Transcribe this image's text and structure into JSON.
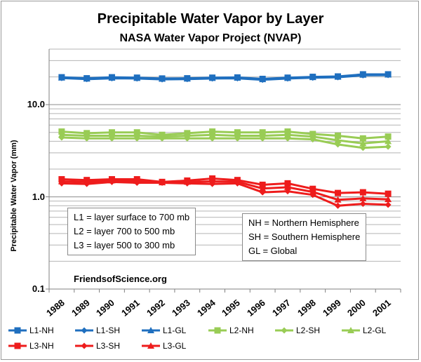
{
  "chart_data": {
    "type": "line",
    "title": "Precipitable Water Vapor  by Layer",
    "subtitle": "NASA Water Vapor Project (NVAP)",
    "xlabel": "",
    "ylabel": "Precipitable Water Vapor (mm)",
    "yscale": "log",
    "ylim": [
      0.1,
      40
    ],
    "y_ticks": [
      "0.1",
      "1.0",
      "10.0"
    ],
    "x": [
      "1988",
      "1989",
      "1990",
      "1991",
      "1992",
      "1993",
      "1994",
      "1995",
      "1996",
      "1997",
      "1998",
      "1999",
      "2000",
      "2001"
    ],
    "series": [
      {
        "name": "L1-NH",
        "color": "#1f6fbf",
        "marker": "square",
        "values": [
          19.8,
          19.3,
          19.8,
          19.6,
          19.2,
          19.3,
          19.6,
          19.7,
          19.0,
          19.6,
          20.0,
          20.2,
          21.3,
          21.3
        ]
      },
      {
        "name": "L1-SH",
        "color": "#1f6fbf",
        "marker": "diamond",
        "values": [
          19.4,
          18.9,
          19.3,
          19.2,
          18.8,
          18.9,
          19.2,
          19.3,
          18.6,
          19.2,
          19.6,
          19.8,
          20.8,
          20.9
        ]
      },
      {
        "name": "L1-GL",
        "color": "#1f6fbf",
        "marker": "triangle",
        "values": [
          19.6,
          19.1,
          19.5,
          19.4,
          19.0,
          19.1,
          19.4,
          19.5,
          18.8,
          19.4,
          19.8,
          20.0,
          21.0,
          21.1
        ]
      },
      {
        "name": "L2-NH",
        "color": "#99cc55",
        "marker": "square",
        "values": [
          5.1,
          4.9,
          5.0,
          5.0,
          4.7,
          4.9,
          5.1,
          5.0,
          5.0,
          5.1,
          4.8,
          4.6,
          4.3,
          4.5
        ]
      },
      {
        "name": "L2-SH",
        "color": "#99cc55",
        "marker": "diamond",
        "values": [
          4.4,
          4.3,
          4.3,
          4.3,
          4.3,
          4.3,
          4.3,
          4.3,
          4.3,
          4.3,
          4.2,
          3.7,
          3.4,
          3.5
        ]
      },
      {
        "name": "L2-GL",
        "color": "#99cc55",
        "marker": "triangle",
        "values": [
          4.7,
          4.6,
          4.6,
          4.6,
          4.5,
          4.6,
          4.7,
          4.6,
          4.6,
          4.7,
          4.5,
          4.1,
          3.8,
          4.0
        ]
      },
      {
        "name": "L3-NH",
        "color": "#ee1c1c",
        "marker": "square",
        "values": [
          1.55,
          1.52,
          1.55,
          1.55,
          1.45,
          1.5,
          1.58,
          1.52,
          1.35,
          1.4,
          1.22,
          1.1,
          1.12,
          1.08
        ]
      },
      {
        "name": "L3-SH",
        "color": "#ee1c1c",
        "marker": "diamond",
        "values": [
          1.4,
          1.38,
          1.45,
          1.42,
          1.42,
          1.4,
          1.38,
          1.4,
          1.12,
          1.15,
          1.05,
          0.8,
          0.84,
          0.82
        ]
      },
      {
        "name": "L3-GL",
        "color": "#ee1c1c",
        "marker": "triangle",
        "values": [
          1.47,
          1.45,
          1.5,
          1.48,
          1.43,
          1.45,
          1.47,
          1.46,
          1.23,
          1.27,
          1.13,
          0.93,
          0.96,
          0.94
        ]
      }
    ],
    "annotations": {
      "layers": [
        "L1 = layer surface to 700  mb",
        "L2 = layer 700  to 500 mb",
        "L3 = layer 500  to 300 mb"
      ],
      "regions": [
        "NH = Northern Hemisphere",
        "SH = Southern Hemisphere",
        "GL = Global"
      ],
      "credit": "FriendsofScience.org"
    },
    "legend_position": "bottom"
  }
}
